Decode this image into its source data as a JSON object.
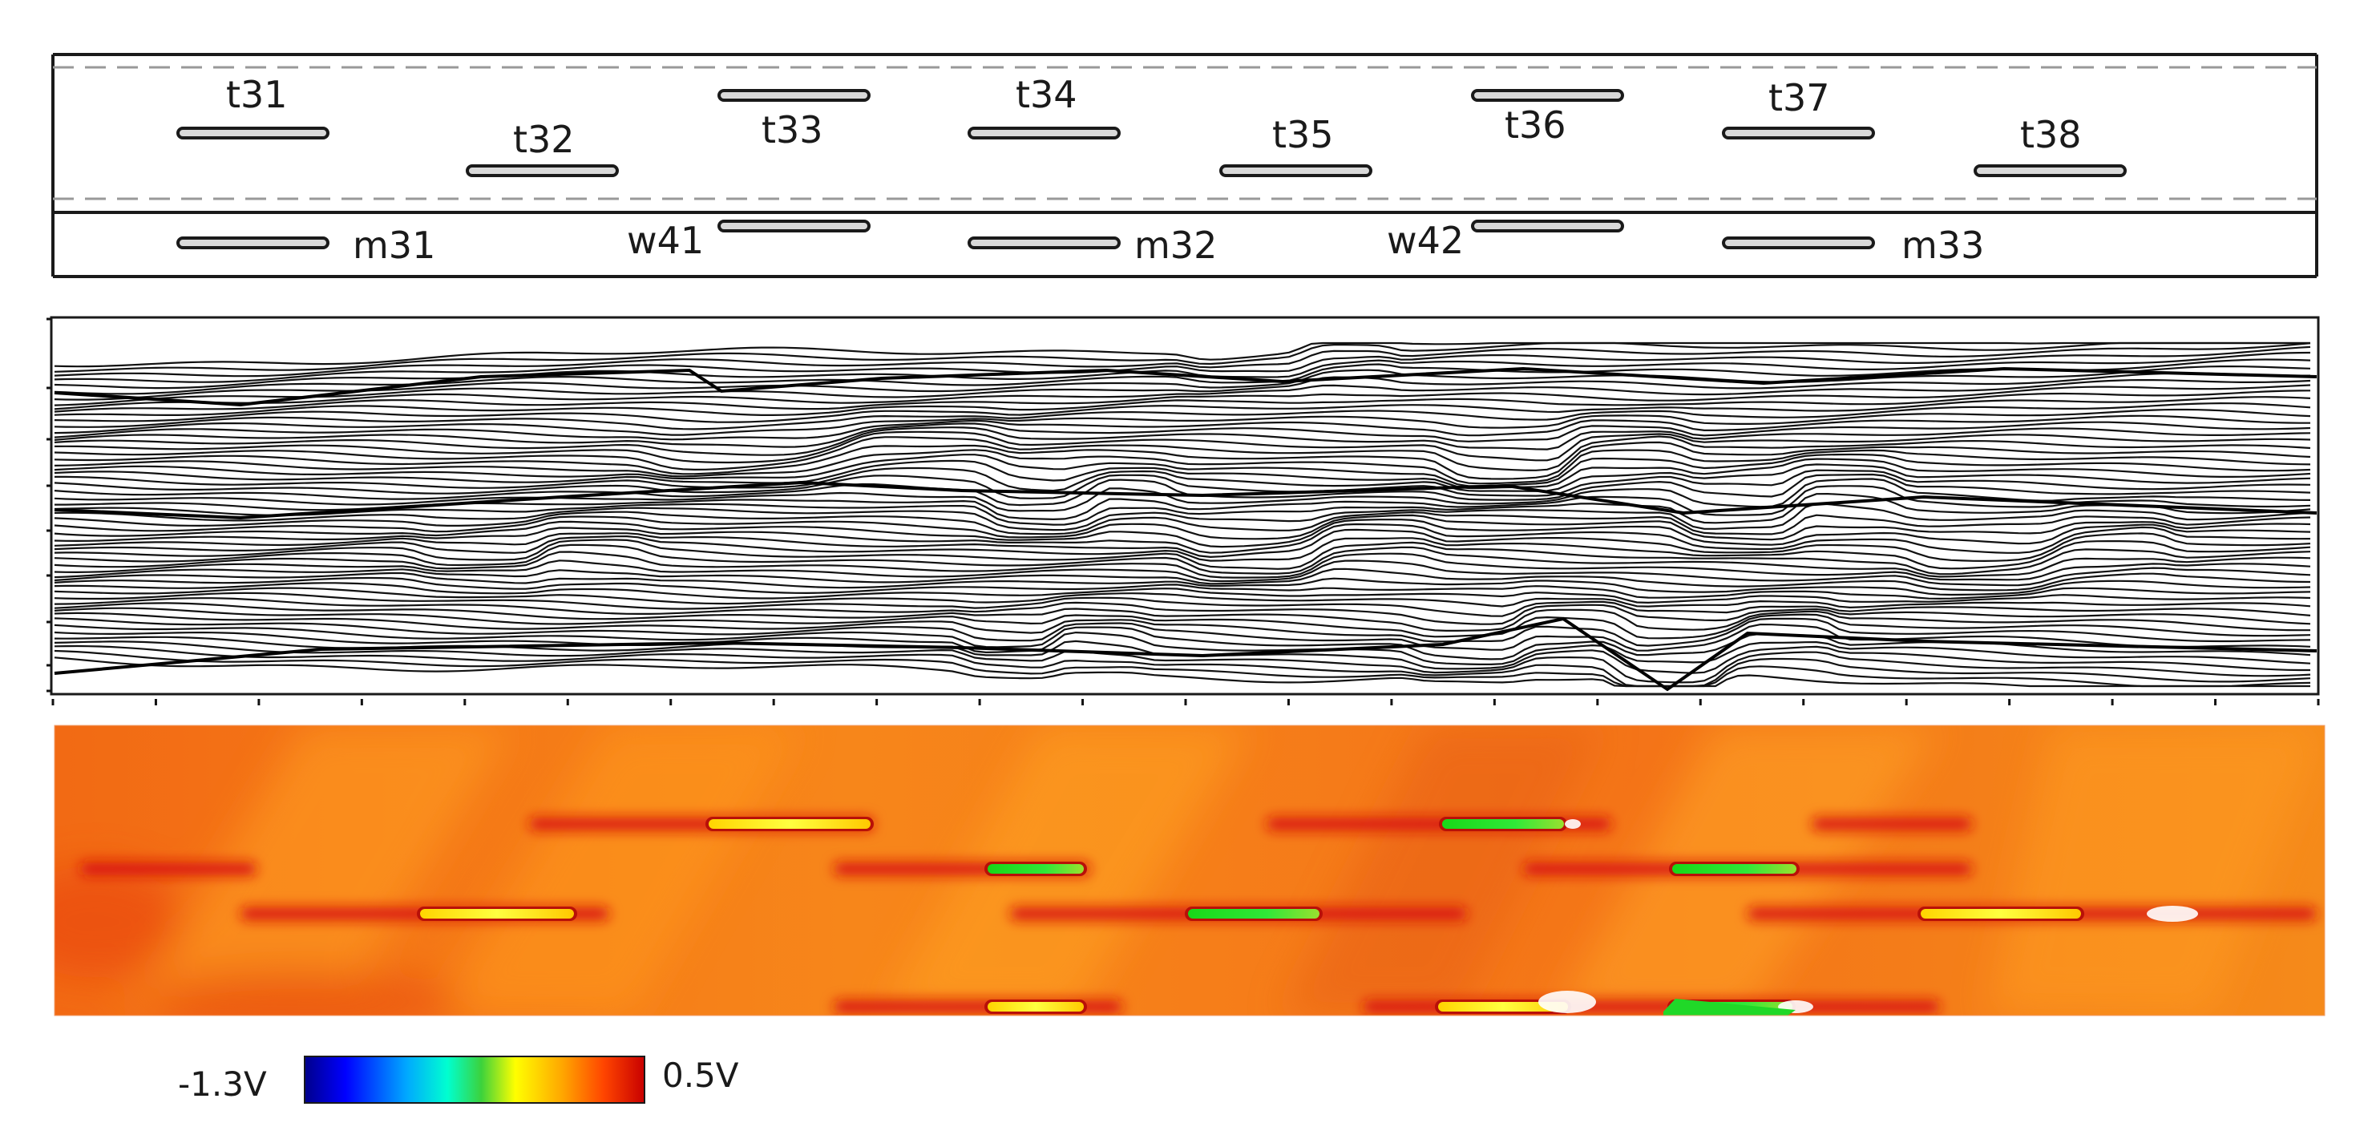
{
  "layout_panel": {
    "top_labels": [
      "t31",
      "t32",
      "t33",
      "t34",
      "t35",
      "t36",
      "t37",
      "t38"
    ],
    "bottom_labels": [
      "m31",
      "w41",
      "m32",
      "w42",
      "m33"
    ]
  },
  "colorbar": {
    "min_label": "-1.3V",
    "max_label": "0.5V",
    "stops": [
      "#00008b",
      "#0000ff",
      "#00a8ff",
      "#00ffd0",
      "#3cd23c",
      "#ffff00",
      "#ffa500",
      "#ff4500",
      "#c80000"
    ]
  },
  "colors": {
    "background": "#ffffff",
    "outline": "#1a1a1a",
    "dashed": "#999999",
    "electrode_fill": "#d9d9d9",
    "field_base": "#f57a14"
  },
  "icons": {
    "electrode": "rounded-bar"
  }
}
